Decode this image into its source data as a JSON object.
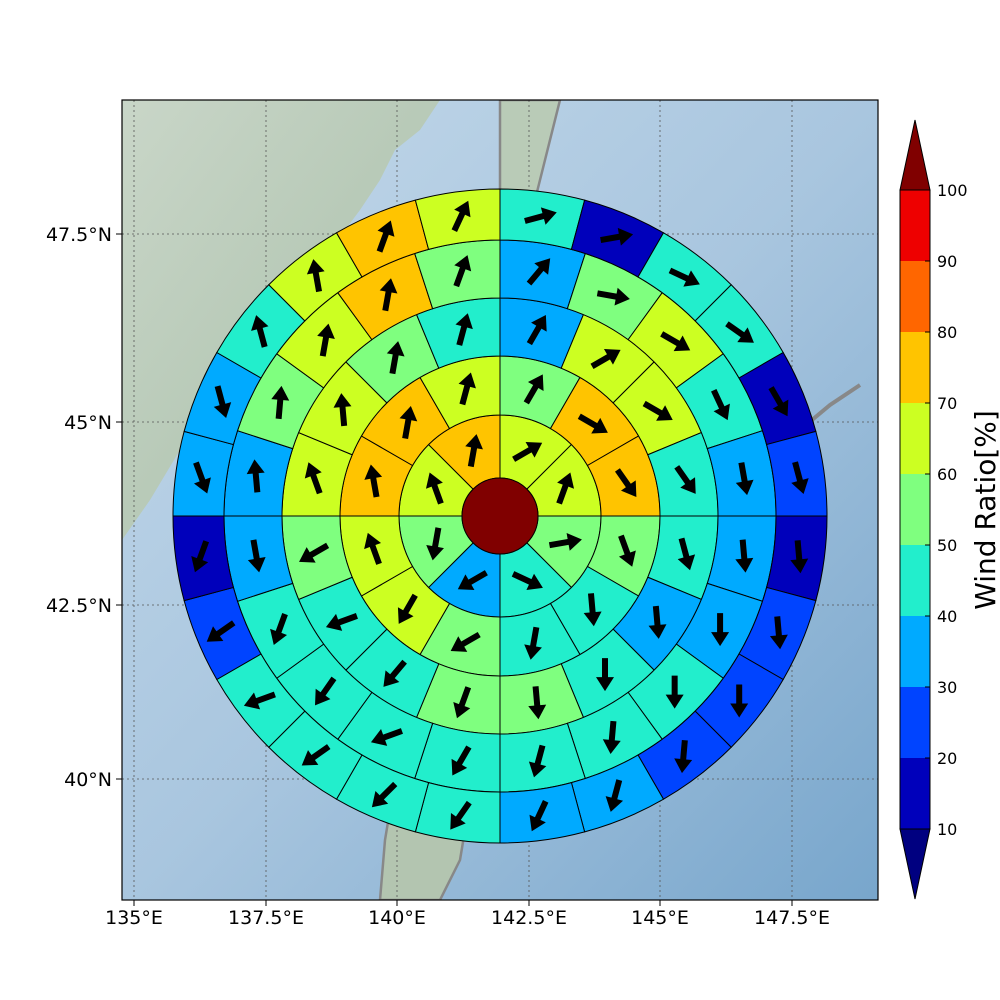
{
  "map": {
    "lon_ticks": [
      "135°E",
      "137.5°E",
      "140°E",
      "142.5°E",
      "145°E",
      "147.5°E"
    ],
    "lat_ticks": [
      "47.5°N",
      "45°N",
      "42.5°N",
      "40°N"
    ],
    "center_value": 100,
    "rings": [
      {
        "sectors": 8,
        "values": [
          62,
          62,
          57,
          45,
          33,
          57,
          67,
          72
        ],
        "wind_deg": [
          60,
          20,
          80,
          115,
          240,
          190,
          340,
          10
        ]
      },
      {
        "sectors": 12,
        "values": [
          55,
          72,
          72,
          55,
          47,
          47,
          57,
          60,
          62,
          72,
          72,
          62
        ],
        "wind_deg": [
          30,
          120,
          145,
          160,
          175,
          190,
          240,
          210,
          340,
          350,
          10,
          15
        ]
      },
      {
        "sectors": 16,
        "values": [
          35,
          65,
          62,
          45,
          40,
          37,
          42,
          55,
          55,
          42,
          45,
          55,
          65,
          62,
          55,
          45
        ],
        "wind_deg": [
          30,
          60,
          120,
          145,
          165,
          175,
          180,
          175,
          200,
          220,
          250,
          240,
          340,
          355,
          10,
          15
        ]
      },
      {
        "sectors": 20,
        "values": [
          35,
          55,
          65,
          45,
          35,
          35,
          33,
          40,
          47,
          47,
          47,
          42,
          40,
          40,
          33,
          33,
          55,
          62,
          72,
          55
        ],
        "wind_deg": [
          40,
          100,
          120,
          155,
          170,
          175,
          180,
          180,
          185,
          195,
          210,
          250,
          215,
          200,
          170,
          355,
          5,
          10,
          10,
          20
        ]
      },
      {
        "sectors": 24,
        "values": [
          47,
          15,
          45,
          47,
          15,
          25,
          12,
          20,
          25,
          25,
          33,
          33,
          45,
          47,
          47,
          47,
          23,
          15,
          33,
          33,
          45,
          62,
          72,
          65
        ],
        "wind_deg": [
          75,
          80,
          115,
          125,
          150,
          165,
          175,
          175,
          180,
          185,
          195,
          205,
          215,
          225,
          235,
          250,
          235,
          200,
          160,
          165,
          345,
          350,
          20,
          25
        ]
      }
    ]
  },
  "colorbar": {
    "title": "Wind Ratio[%]",
    "tick_labels": [
      "10",
      "20",
      "30",
      "40",
      "50",
      "60",
      "70",
      "80",
      "90",
      "100"
    ],
    "colors": [
      "#0000bb",
      "#0044ff",
      "#00aaff",
      "#22eecc",
      "#7fff7f",
      "#ccff22",
      "#ffc400",
      "#ff6600",
      "#ee0000"
    ],
    "under_color": "#000080",
    "over_color": "#800000"
  }
}
